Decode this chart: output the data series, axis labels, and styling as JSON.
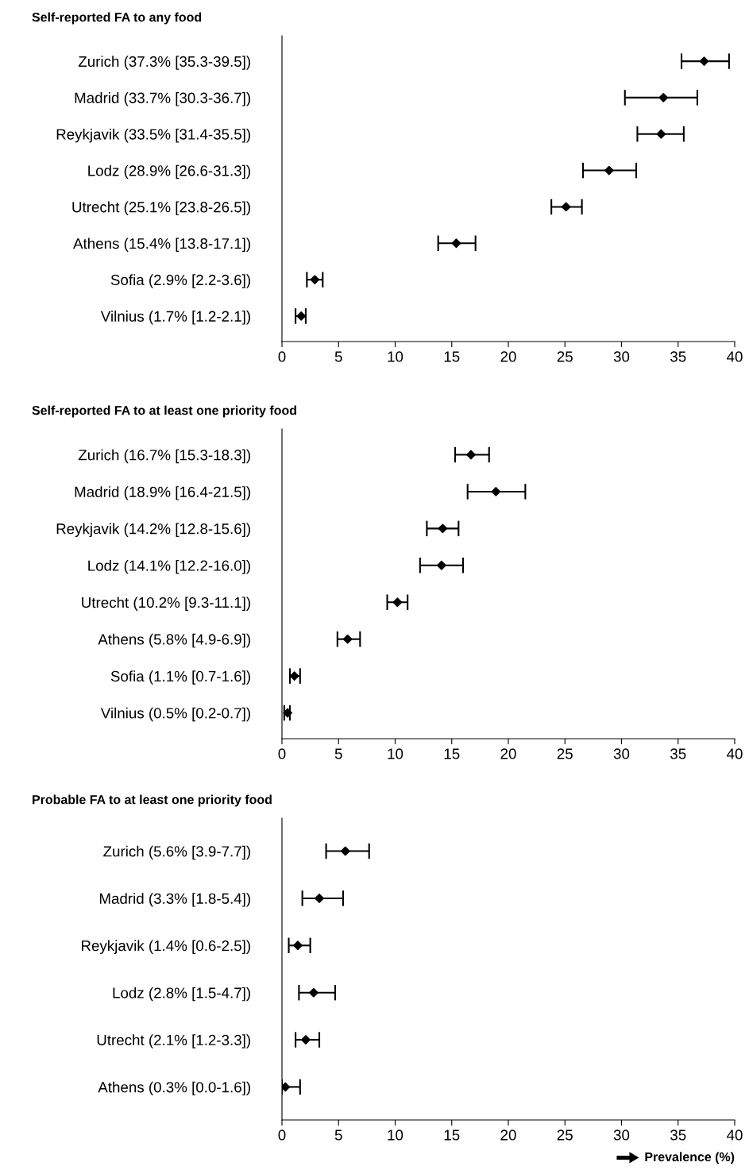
{
  "chart_data": [
    {
      "type": "scatter",
      "orientation": "horizontal",
      "title": "Self-reported FA to any food",
      "marker": "diamond",
      "grid": false,
      "xlim": [
        0,
        40
      ],
      "xticks": [
        0,
        5,
        10,
        15,
        20,
        25,
        30,
        35,
        40
      ],
      "categories": [
        "Zurich (37.3% [35.3-39.5])",
        "Madrid (33.7% [30.3-36.7])",
        "Reykjavik (33.5% [31.4-35.5])",
        "Lodz (28.9% [26.6-31.3])",
        "Utrecht (25.1% [23.8-26.5])",
        "Athens (15.4% [13.8-17.1])",
        "Sofia (2.9% [2.2-3.6])",
        "Vilnius (1.7% [1.2-2.1])"
      ],
      "series": [
        {
          "color": "#000000",
          "values": [
            37.3,
            33.7,
            33.5,
            28.9,
            25.1,
            15.4,
            2.9,
            1.7
          ],
          "errors": [
            [
              35.3,
              39.5
            ],
            [
              30.3,
              36.7
            ],
            [
              31.4,
              35.5
            ],
            [
              26.6,
              31.3
            ],
            [
              23.8,
              26.5
            ],
            [
              13.8,
              17.1
            ],
            [
              2.2,
              3.6
            ],
            [
              1.2,
              2.1
            ]
          ]
        }
      ]
    },
    {
      "type": "scatter",
      "orientation": "horizontal",
      "title": "Self-reported FA to at least one priority food",
      "marker": "diamond",
      "grid": false,
      "xlim": [
        0,
        40
      ],
      "xticks": [
        0,
        5,
        10,
        15,
        20,
        25,
        30,
        35,
        40
      ],
      "categories": [
        "Zurich (16.7% [15.3-18.3])",
        "Madrid (18.9% [16.4-21.5])",
        "Reykjavik (14.2% [12.8-15.6])",
        "Lodz (14.1% [12.2-16.0])",
        "Utrecht (10.2% [9.3-11.1])",
        "Athens (5.8% [4.9-6.9])",
        "Sofia (1.1% [0.7-1.6])",
        "Vilnius (0.5% [0.2-0.7])"
      ],
      "series": [
        {
          "color": "#000000",
          "values": [
            16.7,
            18.9,
            14.2,
            14.1,
            10.2,
            5.8,
            1.1,
            0.5
          ],
          "errors": [
            [
              15.3,
              18.3
            ],
            [
              16.4,
              21.5
            ],
            [
              12.8,
              15.6
            ],
            [
              12.2,
              16.0
            ],
            [
              9.3,
              11.1
            ],
            [
              4.9,
              6.9
            ],
            [
              0.7,
              1.6
            ],
            [
              0.2,
              0.7
            ]
          ]
        }
      ]
    },
    {
      "type": "scatter",
      "orientation": "horizontal",
      "title": "Probable FA to at least one priority food",
      "xlabel": "Prevalence (%)",
      "marker": "diamond",
      "grid": false,
      "xlim": [
        0,
        40
      ],
      "xticks": [
        0,
        5,
        10,
        15,
        20,
        25,
        30,
        35,
        40
      ],
      "categories": [
        "Zurich (5.6% [3.9-7.7])",
        "Madrid (3.3% [1.8-5.4])",
        "Reykjavik (1.4% [0.6-2.5])",
        "Lodz (2.8% [1.5-4.7])",
        "Utrecht (2.1% [1.2-3.3])",
        "Athens (0.3% [0.0-1.6])"
      ],
      "series": [
        {
          "color": "#000000",
          "values": [
            5.6,
            3.3,
            1.4,
            2.8,
            2.1,
            0.3
          ],
          "errors": [
            [
              3.9,
              7.7
            ],
            [
              1.8,
              5.4
            ],
            [
              0.6,
              2.5
            ],
            [
              1.5,
              4.7
            ],
            [
              1.2,
              3.3
            ],
            [
              0.0,
              1.6
            ]
          ]
        }
      ]
    }
  ]
}
